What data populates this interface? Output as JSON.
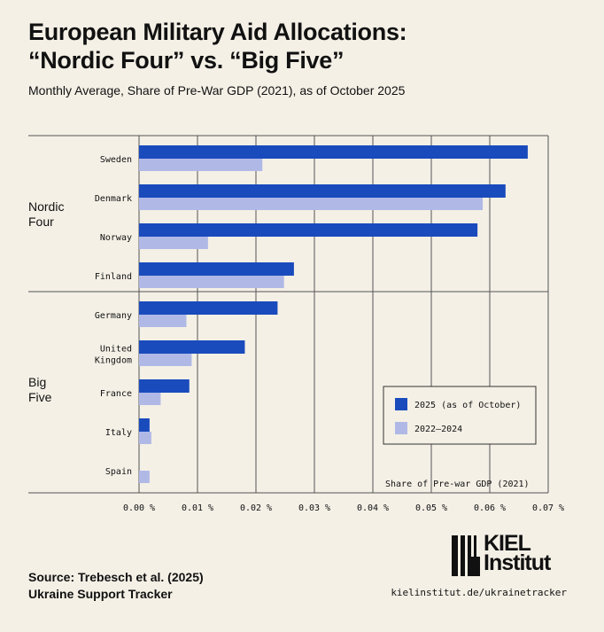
{
  "title_line1": "European Military Aid Allocations:",
  "title_line2": "“Nordic Four” vs. “Big Five”",
  "subtitle": "Monthly Average, Share of Pre-War GDP (2021), as of October 2025",
  "source_line1": "Source: Trebesch et al. (2025)",
  "source_line2": "Ukraine Support Tracker",
  "url": "kielinstitut.de/ukrainetracker",
  "logo_text": [
    "KIEL",
    "Institut"
  ],
  "colors": {
    "series_2025": "#1a4bbd",
    "series_2022_2024": "#b0b9e6",
    "background": "#f4f0e6"
  },
  "chart_data": {
    "type": "bar",
    "orientation": "horizontal",
    "xlabel": "Share of Pre-war GDP (2021)",
    "xlim": [
      0,
      0.07
    ],
    "x_ticks": [
      "0.00 %",
      "0.01 %",
      "0.02 %",
      "0.03 %",
      "0.04 %",
      "0.05 %",
      "0.06 %",
      "0.07 %"
    ],
    "grid": true,
    "legend_position": "bottom-right",
    "groups": [
      {
        "name": [
          "Nordic",
          "Four"
        ],
        "categories": [
          "Sweden",
          "Denmark",
          "Norway",
          "Finland"
        ]
      },
      {
        "name": [
          "Big",
          "Five"
        ],
        "categories": [
          "Germany",
          "United Kingdom",
          "France",
          "Italy",
          "Spain"
        ]
      }
    ],
    "categories": [
      "Sweden",
      "Denmark",
      "Norway",
      "Finland",
      "Germany",
      "United Kingdom",
      "France",
      "Italy",
      "Spain"
    ],
    "series": [
      {
        "name": "2025 (as of October)",
        "values": [
          0.0665,
          0.0627,
          0.0579,
          0.0265,
          0.0237,
          0.0181,
          0.0086,
          0.0018,
          0
        ]
      },
      {
        "name": "2022–2024",
        "values": [
          0.0211,
          0.0588,
          0.0118,
          0.0248,
          0.0081,
          0.009,
          0.0037,
          0.0021,
          0.0018
        ]
      }
    ]
  }
}
